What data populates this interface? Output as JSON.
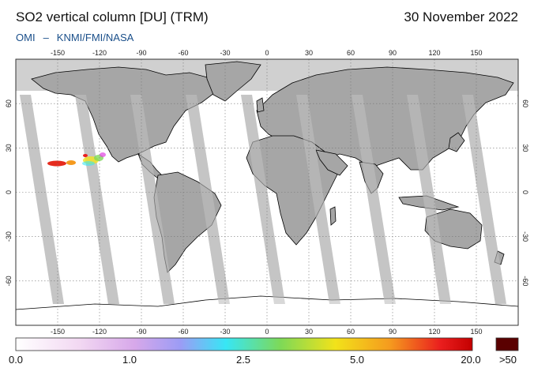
{
  "header": {
    "title": "SO2 vertical column [DU] (TRM)",
    "date": "30 November 2022",
    "credit_left": "OMI",
    "credit_sep": "–",
    "credit_right": "KNMI/FMI/NASA"
  },
  "map": {
    "lon_ticks": [
      "-150",
      "-120",
      "-90",
      "-60",
      "-30",
      "0",
      "30",
      "60",
      "90",
      "120",
      "150"
    ],
    "lat_ticks": [
      "60",
      "30",
      "0",
      "-30",
      "-60"
    ],
    "colors": {
      "ocean_swath": "#ffffff",
      "ocean_gap": "#d0d0d0",
      "land_swath": "#a6a6a6",
      "land_gap": "#bfbfbf",
      "grid": "#777777",
      "coast": "#000000"
    }
  },
  "colorbar": {
    "labels": [
      "0.0",
      "1.0",
      "2.5",
      "5.0",
      "20.0",
      ">50"
    ],
    "colors": [
      "#ffffff",
      "#f2d8f2",
      "#d7a8ea",
      "#9c9cf5",
      "#37e6f5",
      "#7ed957",
      "#f2e21a",
      "#f59a1e",
      "#ea1e1e",
      "#c40000"
    ],
    "overflow_color": "#5a0000"
  }
}
